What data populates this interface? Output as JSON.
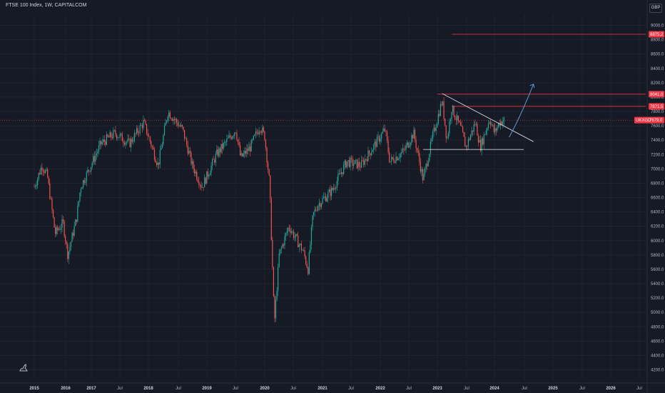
{
  "header": {
    "title": "FTSE 100 Index, 1W, CAPITALCOM",
    "currency": "GBP"
  },
  "chart_data": {
    "type": "candlestick",
    "ylim": [
      4100,
      9200
    ],
    "x_tick_labels": [
      "2015",
      "2016",
      "Jul",
      "2017",
      "Jul",
      "2018",
      "Jul",
      "2019",
      "Jul",
      "2020",
      "Jul",
      "2021",
      "Jul",
      "2022",
      "Jul",
      "2023",
      "Jul",
      "2024",
      "Jul",
      "2025",
      "Jul",
      "2026",
      "Jul"
    ],
    "x_tick_bold": [
      "2015",
      "2016",
      "2017",
      "2018",
      "2019",
      "2020",
      "2021",
      "2022",
      "2023",
      "2024",
      "2025",
      "2026"
    ],
    "y_ticks": [
      4200,
      4400,
      4600,
      4800,
      5000,
      5200,
      5400,
      5600,
      5800,
      6000,
      6200,
      6400,
      6600,
      6800,
      7000,
      7200,
      7400,
      7600,
      7800,
      8000,
      8200,
      8400,
      8600,
      8800,
      9000
    ],
    "y_tick_labels": [
      "4200.0",
      "4400.0",
      "4600.0",
      "4800.0",
      "5000.0",
      "5200.0",
      "5400.0",
      "5600.0",
      "5800.0",
      "6000.0",
      "6200.0",
      "6400.0",
      "6600.0",
      "6800.0",
      "7000.0",
      "7200.0",
      "7400.0",
      "7600.0",
      "7800.0",
      "8000.0",
      "8200.0",
      "8400.0",
      "8600.0",
      "8800.0",
      "9000.0"
    ],
    "horizontal_levels": [
      {
        "value": 8875.2,
        "label": "8875.2",
        "color": "#f23645",
        "x_start": "2023-04"
      },
      {
        "value": 8041.0,
        "label": "8041.0",
        "color": "#f23645",
        "x_start": "2023-01"
      },
      {
        "value": 7871.5,
        "label": "7871.5",
        "color": "#f23645",
        "x_start": "2023-04"
      }
    ],
    "last_price": {
      "symbol": "UKXGD",
      "value": 7679.0,
      "color": "#f23645"
    },
    "trendlines": [
      {
        "name": "descending",
        "from": [
          "2023-02",
          8050
        ],
        "to": [
          "2024-09",
          7380
        ],
        "color": "#d1d4dc"
      },
      {
        "name": "support",
        "from": [
          "2022-10",
          7270
        ],
        "to": [
          "2024-07",
          7270
        ],
        "color": "#d1d4dc"
      }
    ],
    "arrow": {
      "from": [
        "2024-04",
        7440
      ],
      "to": [
        "2024-09",
        8180
      ],
      "color": "#5b9bd5"
    },
    "price_path": [
      [
        "2015-01",
        6750
      ],
      [
        "2015-04",
        7050
      ],
      [
        "2015-06",
        6900
      ],
      [
        "2015-09",
        6100
      ],
      [
        "2015-12",
        6250
      ],
      [
        "2016-02",
        5800
      ],
      [
        "2016-06",
        6300
      ],
      [
        "2016-08",
        6750
      ],
      [
        "2016-12",
        7000
      ],
      [
        "2017-03",
        7350
      ],
      [
        "2017-06",
        7500
      ],
      [
        "2017-09",
        7350
      ],
      [
        "2017-12",
        7650
      ],
      [
        "2018-03",
        7050
      ],
      [
        "2018-05",
        7800
      ],
      [
        "2018-08",
        7550
      ],
      [
        "2018-10",
        7050
      ],
      [
        "2018-12",
        6750
      ],
      [
        "2019-03",
        7200
      ],
      [
        "2019-07",
        7550
      ],
      [
        "2019-08",
        7150
      ],
      [
        "2019-10",
        7300
      ],
      [
        "2019-12",
        7600
      ],
      [
        "2020-01",
        7450
      ],
      [
        "2020-02",
        6800
      ],
      [
        "2020-03",
        4850
      ],
      [
        "2020-04",
        5800
      ],
      [
        "2020-06",
        6200
      ],
      [
        "2020-09",
        5850
      ],
      [
        "2020-10",
        5600
      ],
      [
        "2020-11",
        6350
      ],
      [
        "2020-12",
        6500
      ],
      [
        "2021-03",
        6700
      ],
      [
        "2021-06",
        7100
      ],
      [
        "2021-09",
        7050
      ],
      [
        "2021-12",
        7350
      ],
      [
        "2022-02",
        7550
      ],
      [
        "2022-03",
        7100
      ],
      [
        "2022-06",
        7250
      ],
      [
        "2022-08",
        7500
      ],
      [
        "2022-10",
        6850
      ],
      [
        "2022-12",
        7450
      ],
      [
        "2023-02",
        7950
      ],
      [
        "2023-03",
        7400
      ],
      [
        "2023-04",
        7850
      ],
      [
        "2023-06",
        7550
      ],
      [
        "2023-07",
        7300
      ],
      [
        "2023-09",
        7650
      ],
      [
        "2023-10",
        7300
      ],
      [
        "2023-12",
        7700
      ],
      [
        "2024-01",
        7500
      ],
      [
        "2024-02",
        7650
      ],
      [
        "2024-03",
        7679
      ]
    ]
  }
}
